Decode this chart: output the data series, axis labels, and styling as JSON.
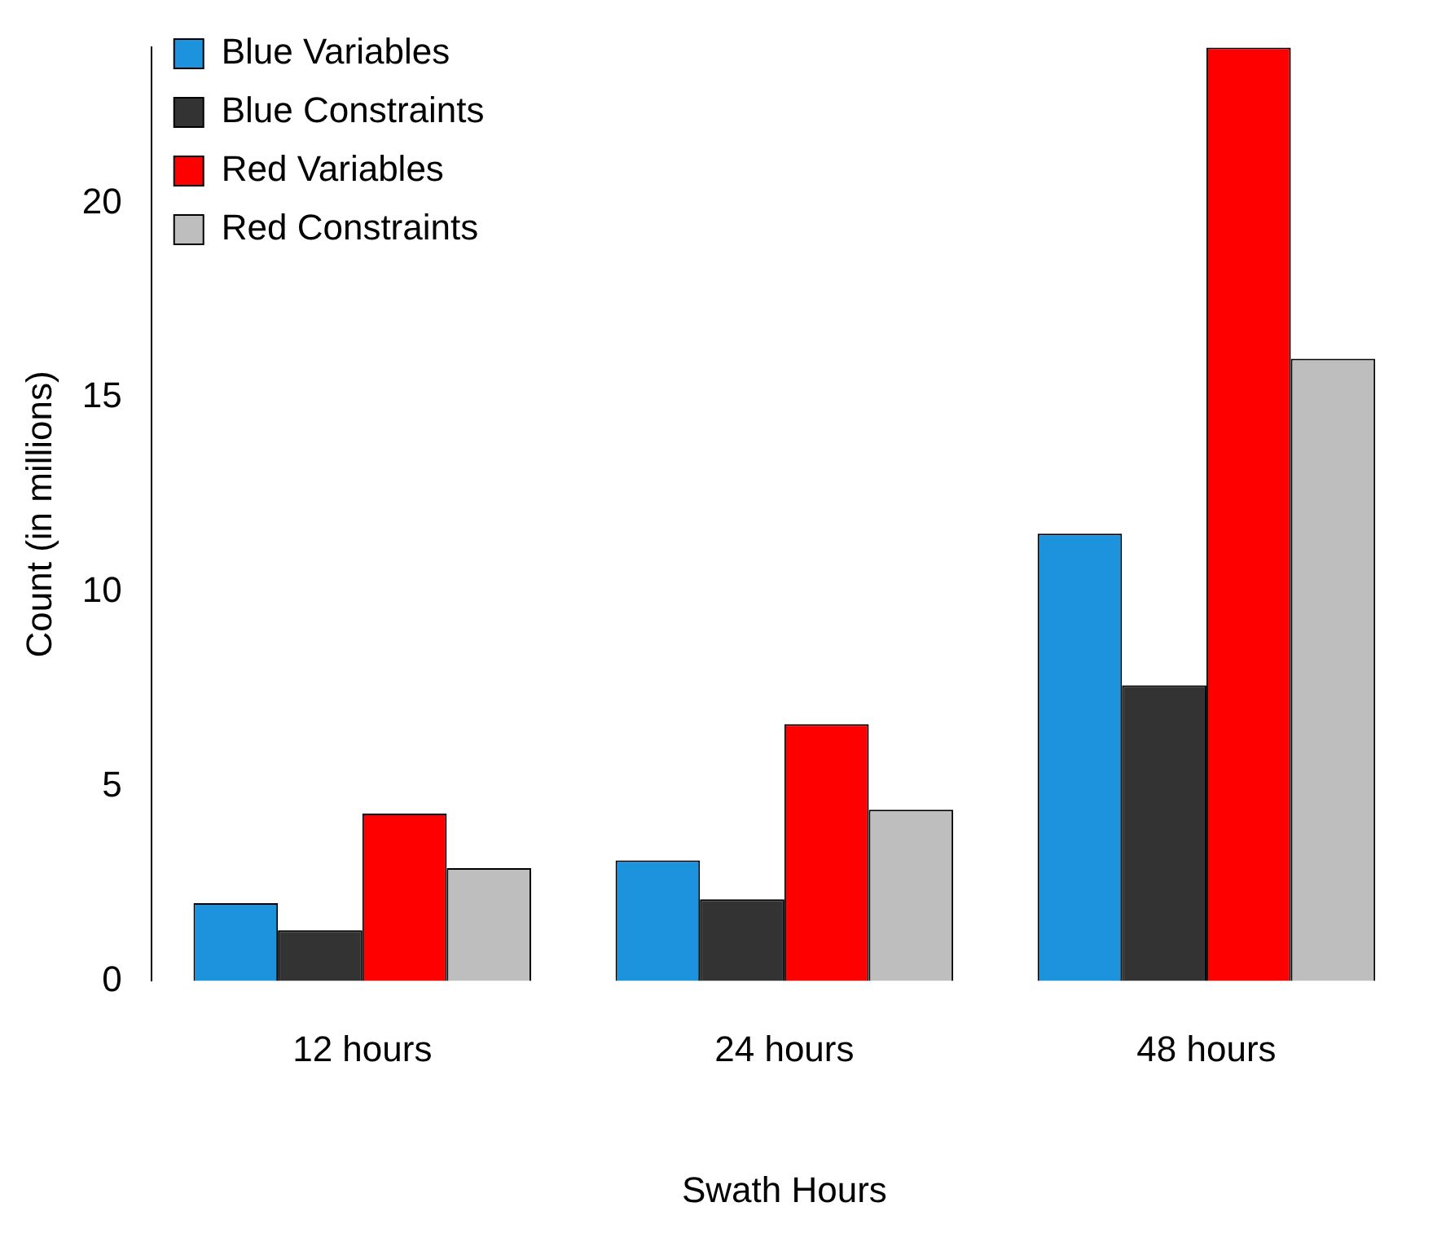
{
  "chart_data": {
    "type": "bar",
    "xlabel": "Swath Hours",
    "ylabel": "Count (in millions)",
    "categories": [
      "12 hours",
      "24 hours",
      "48 hours"
    ],
    "series": [
      {
        "name": "Blue Variables",
        "color": "#1c93dc",
        "values": [
          2.0,
          3.1,
          11.5
        ]
      },
      {
        "name": "Blue Constraints",
        "color": "#333333",
        "values": [
          1.3,
          2.1,
          7.6
        ]
      },
      {
        "name": "Red Variables",
        "color": "#ff0000",
        "values": [
          4.3,
          6.6,
          24.0
        ]
      },
      {
        "name": "Red Constraints",
        "color": "#bebebe",
        "values": [
          2.9,
          4.4,
          16.0
        ]
      }
    ],
    "ylim": [
      0,
      24
    ],
    "yticks": [
      0,
      5,
      10,
      15,
      20
    ],
    "grid": false,
    "legend": "top left"
  }
}
